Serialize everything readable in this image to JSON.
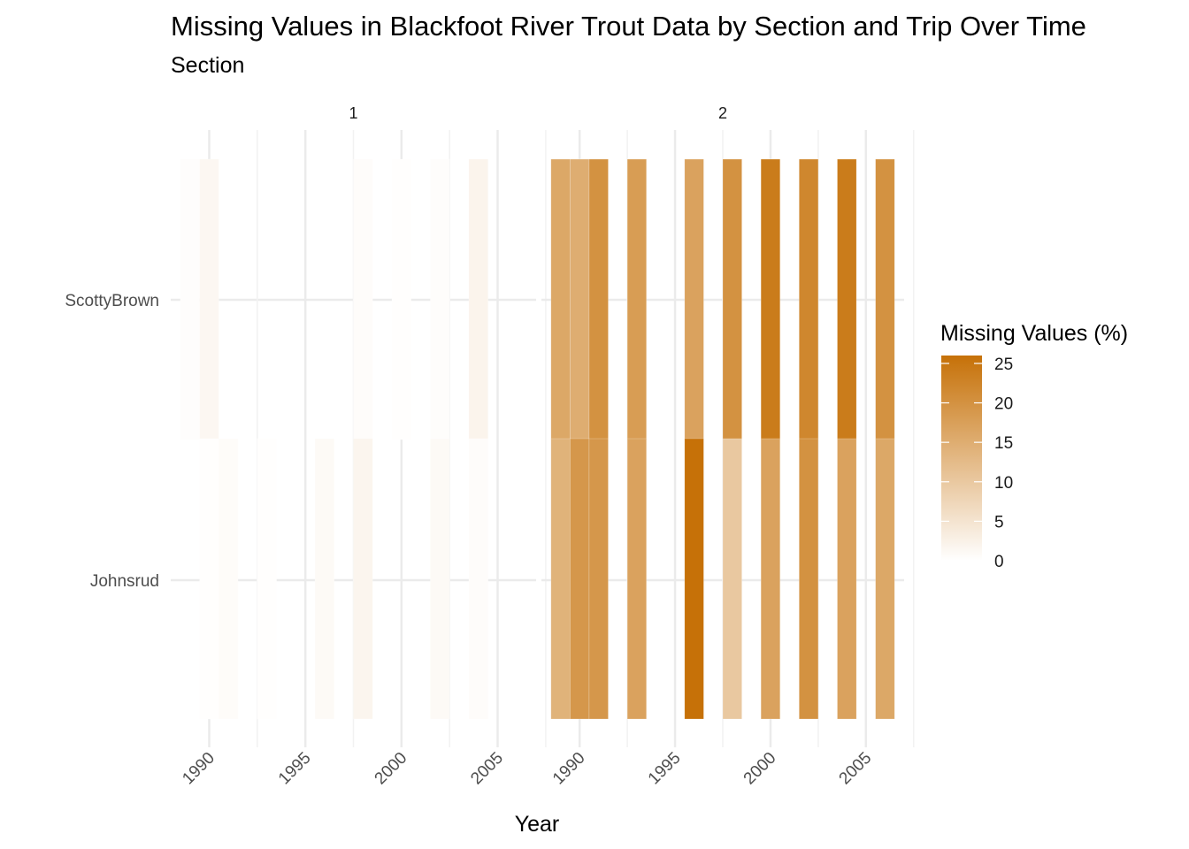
{
  "chart_data": {
    "type": "heatmap",
    "title": "Missing Values in Blackfoot River Trout Data by Section and Trip Over Time",
    "subtitle": "Section",
    "xlabel": "Year",
    "ylabel": "",
    "facet_labels": [
      "1",
      "2"
    ],
    "y_categories": [
      "ScottyBrown",
      "Johnsrud"
    ],
    "x_ticks": [
      1990,
      1995,
      2000,
      2005
    ],
    "xlim": [
      1988,
      2007
    ],
    "legend": {
      "title": "Missing Values (%)",
      "ticks": [
        0,
        5,
        10,
        15,
        20,
        25
      ],
      "min": 0,
      "max": 26,
      "low_color": "#ffffff",
      "high_color": "#c67108"
    },
    "grid": true,
    "facets": [
      {
        "label": "1",
        "cells": [
          {
            "year": 1989,
            "section": "ScottyBrown",
            "value": 0.3
          },
          {
            "year": 1990,
            "section": "ScottyBrown",
            "value": 1.4
          },
          {
            "year": 1998,
            "section": "ScottyBrown",
            "value": 0.5
          },
          {
            "year": 2000,
            "section": "ScottyBrown",
            "value": 0.2
          },
          {
            "year": 2002,
            "section": "ScottyBrown",
            "value": 0.4
          },
          {
            "year": 2004,
            "section": "ScottyBrown",
            "value": 2.0
          },
          {
            "year": 1990,
            "section": "Johnsrud",
            "value": 0.2
          },
          {
            "year": 1991,
            "section": "Johnsrud",
            "value": 0.6
          },
          {
            "year": 1993,
            "section": "Johnsrud",
            "value": 0.2
          },
          {
            "year": 1996,
            "section": "Johnsrud",
            "value": 0.9
          },
          {
            "year": 1998,
            "section": "Johnsrud",
            "value": 1.8
          },
          {
            "year": 2002,
            "section": "Johnsrud",
            "value": 0.9
          },
          {
            "year": 2004,
            "section": "Johnsrud",
            "value": 0.5
          }
        ]
      },
      {
        "label": "2",
        "cells": [
          {
            "year": 1989,
            "section": "ScottyBrown",
            "value": 16
          },
          {
            "year": 1990,
            "section": "ScottyBrown",
            "value": 15
          },
          {
            "year": 1991,
            "section": "ScottyBrown",
            "value": 20
          },
          {
            "year": 1993,
            "section": "ScottyBrown",
            "value": 18
          },
          {
            "year": 1996,
            "section": "ScottyBrown",
            "value": 17
          },
          {
            "year": 1998,
            "section": "ScottyBrown",
            "value": 20
          },
          {
            "year": 2000,
            "section": "ScottyBrown",
            "value": 24
          },
          {
            "year": 2002,
            "section": "ScottyBrown",
            "value": 22
          },
          {
            "year": 2004,
            "section": "ScottyBrown",
            "value": 24
          },
          {
            "year": 2006,
            "section": "ScottyBrown",
            "value": 20
          },
          {
            "year": 1989,
            "section": "Johnsrud",
            "value": 14
          },
          {
            "year": 1990,
            "section": "Johnsrud",
            "value": 19
          },
          {
            "year": 1991,
            "section": "Johnsrud",
            "value": 19
          },
          {
            "year": 1993,
            "section": "Johnsrud",
            "value": 17
          },
          {
            "year": 1996,
            "section": "Johnsrud",
            "value": 26
          },
          {
            "year": 1998,
            "section": "Johnsrud",
            "value": 10
          },
          {
            "year": 2000,
            "section": "Johnsrud",
            "value": 17
          },
          {
            "year": 2002,
            "section": "Johnsrud",
            "value": 20
          },
          {
            "year": 2004,
            "section": "Johnsrud",
            "value": 17
          },
          {
            "year": 2006,
            "section": "Johnsrud",
            "value": 16
          }
        ]
      }
    ]
  }
}
